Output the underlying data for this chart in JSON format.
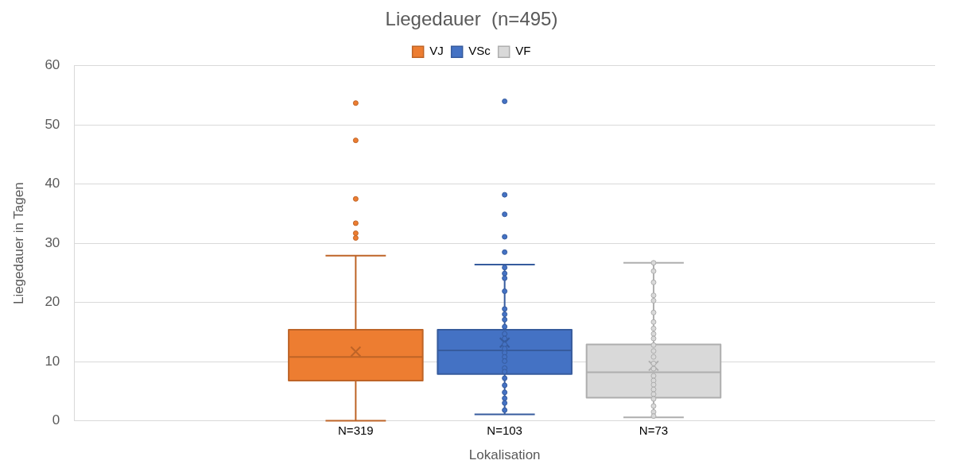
{
  "chart_data": {
    "type": "box",
    "title": "Liegedauer  (n=495)",
    "xlabel": "Lokalisation",
    "ylabel": "Liegedauer in Tagen",
    "categories": [
      null
    ],
    "annotations": [
      "N=319",
      "N=103",
      "N=73"
    ],
    "ylim": [
      0,
      60
    ],
    "yticks": [
      0,
      10,
      20,
      30,
      40,
      50,
      60
    ],
    "grid": "y",
    "legend": "top",
    "marker": "circle",
    "series": [
      {
        "name": "VJ",
        "color": "#ed7d31",
        "boxes": [
          {
            "low": 0,
            "q1": 6.8,
            "median": 10.8,
            "q3": 15.4,
            "high": 27.9,
            "mean": 11.7,
            "outliers": [
              53.7,
              47.4,
              37.5,
              33.4,
              31.7,
              30.9
            ]
          }
        ]
      },
      {
        "name": "VSc",
        "color": "#4472c4",
        "boxes": [
          {
            "low": 1.1,
            "q1": 7.9,
            "median": 11.9,
            "q3": 15.4,
            "high": 26.4,
            "mean": 13.2,
            "outliers": [
              54.0,
              38.2,
              34.9,
              31.1,
              28.5,
              25.9,
              24.9,
              24.1,
              21.9,
              18.9,
              18.0,
              17.1,
              15.9,
              14.7,
              13.9,
              12.9,
              12.2,
              11.5,
              10.8,
              10.1,
              8.9,
              8.3,
              7.2,
              6.0,
              4.8,
              3.8,
              3.0,
              1.8
            ]
          }
        ]
      },
      {
        "name": "VF",
        "color": "#d9d9d9",
        "boxes": [
          {
            "low": 0.6,
            "q1": 3.9,
            "median": 8.2,
            "q3": 12.9,
            "high": 26.7,
            "mean": 9.3,
            "outliers": [
              26.7,
              25.3,
              23.4,
              21.2,
              20.3,
              18.3,
              16.7,
              15.6,
              14.7,
              13.9,
              12.8,
              11.8,
              10.8,
              9.7,
              8.8,
              7.6,
              6.8,
              6.1,
              5.3,
              4.5,
              3.7,
              2.5,
              1.5,
              0.8
            ]
          }
        ]
      }
    ]
  }
}
